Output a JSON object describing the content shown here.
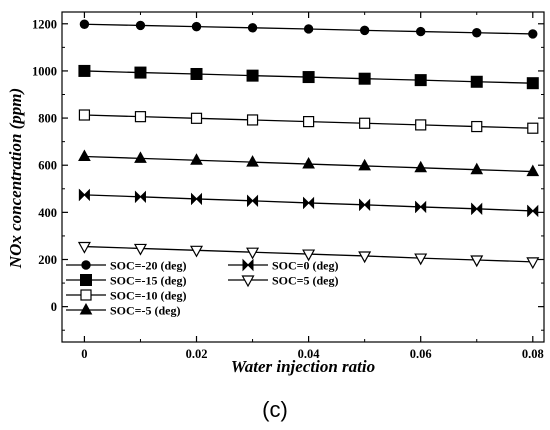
{
  "chart_data": {
    "type": "line",
    "title": "",
    "xlabel": "Water injection ratio",
    "ylabel": "NOx concentration (ppm)",
    "xlim": [
      -0.004,
      0.082
    ],
    "ylim": [
      -150,
      1250
    ],
    "x_ticks": [
      0,
      0.02,
      0.04,
      0.06,
      0.08
    ],
    "x_tick_labels": [
      "0",
      "0.02",
      "0.04",
      "0.06",
      "0.08"
    ],
    "y_ticks": [
      0,
      200,
      400,
      600,
      800,
      1000,
      1200
    ],
    "y_tick_labels": [
      "0",
      "200",
      "400",
      "600",
      "800",
      "1000",
      "1200"
    ],
    "grid": false,
    "legend_position": "bottom-left",
    "x": [
      0,
      0.01,
      0.02,
      0.03,
      0.04,
      0.05,
      0.06,
      0.07,
      0.08
    ],
    "series": [
      {
        "name": "SOC=-20 (deg)",
        "marker": "circle-filled",
        "values": [
          1198,
          1193,
          1188,
          1183,
          1178,
          1172,
          1167,
          1162,
          1157
        ]
      },
      {
        "name": "SOC=-15 (deg)",
        "marker": "square-filled",
        "values": [
          1000,
          993,
          987,
          980,
          974,
          967,
          961,
          954,
          948
        ]
      },
      {
        "name": "SOC=-10 (deg)",
        "marker": "square-open",
        "values": [
          813,
          806,
          799,
          792,
          785,
          778,
          771,
          764,
          757
        ]
      },
      {
        "name": "SOC=-5 (deg)",
        "marker": "triangle-up-filled",
        "values": [
          637,
          629,
          621,
          613,
          605,
          597,
          589,
          581,
          573
        ]
      },
      {
        "name": "SOC=0 (deg)",
        "marker": "bowtie",
        "values": [
          474,
          466,
          457,
          449,
          440,
          432,
          423,
          415,
          406
        ]
      },
      {
        "name": "SOC=5 (deg)",
        "marker": "triangle-down-open",
        "values": [
          255,
          247,
          239,
          231,
          223,
          215,
          206,
          198,
          190
        ]
      }
    ]
  },
  "panel_label": "(c)"
}
